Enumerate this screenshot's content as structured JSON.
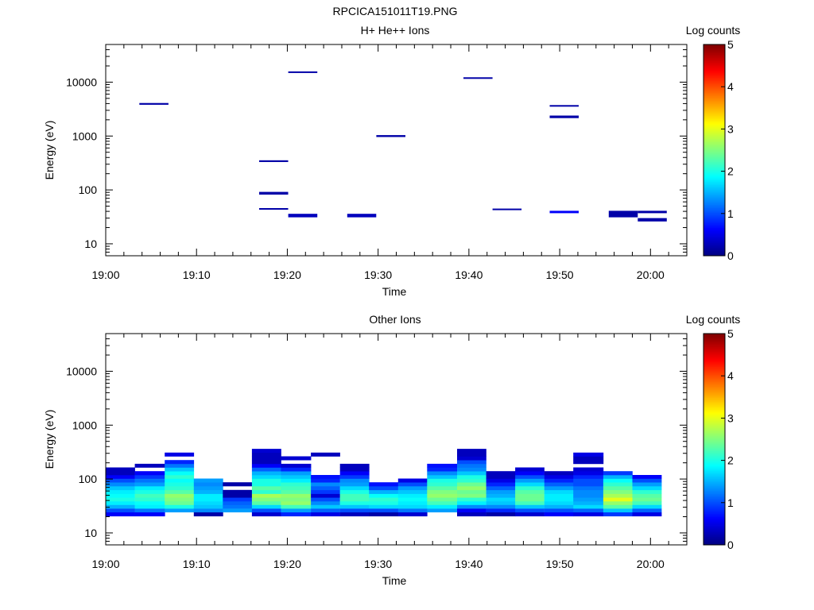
{
  "figure_title": "RPCICA151011T19.PNG",
  "colorbar": {
    "label": "Log counts",
    "ticks": [
      "0",
      "1",
      "2",
      "3",
      "4",
      "5"
    ],
    "range": [
      0,
      5
    ],
    "colormap": "jet"
  },
  "chart_data": [
    {
      "type": "heatmap",
      "title": "H+ He++ Ions",
      "xlabel": "Time",
      "ylabel": "Energy (eV)",
      "yscale": "log",
      "xlim": [
        "19:00",
        "20:04"
      ],
      "ylim": [
        6,
        50000
      ],
      "xticks": [
        "19:00",
        "19:10",
        "19:20",
        "19:30",
        "19:40",
        "19:50",
        "20:00"
      ],
      "yticks": [
        "10",
        "100",
        "1000",
        "10000"
      ],
      "cells": [
        {
          "t0": "19:03.7",
          "t1": "19:06.9",
          "e_lo": 3800,
          "e_hi": 4100,
          "v": 0.2
        },
        {
          "t0": "19:16.9",
          "t1": "19:20.1",
          "e_lo": 330,
          "e_hi": 355,
          "v": 0.2
        },
        {
          "t0": "19:16.9",
          "t1": "19:20.1",
          "e_lo": 82,
          "e_hi": 92,
          "v": 0.2
        },
        {
          "t0": "19:16.9",
          "t1": "19:20.1",
          "e_lo": 43,
          "e_hi": 46,
          "v": 0.2
        },
        {
          "t0": "19:20.1",
          "t1": "19:23.3",
          "e_lo": 14800,
          "e_hi": 15800,
          "v": 0.2
        },
        {
          "t0": "19:20.1",
          "t1": "19:23.3",
          "e_lo": 31,
          "e_hi": 36,
          "v": 0.3
        },
        {
          "t0": "19:26.6",
          "t1": "19:29.8",
          "e_lo": 31,
          "e_hi": 36,
          "v": 0.3
        },
        {
          "t0": "19:29.8",
          "t1": "19:33.0",
          "e_lo": 960,
          "e_hi": 1040,
          "v": 0.2
        },
        {
          "t0": "19:39.4",
          "t1": "19:42.6",
          "e_lo": 11600,
          "e_hi": 12300,
          "v": 0.2
        },
        {
          "t0": "19:42.6",
          "t1": "19:45.8",
          "e_lo": 42,
          "e_hi": 45,
          "v": 0.2
        },
        {
          "t0": "19:48.9",
          "t1": "19:52.1",
          "e_lo": 3550,
          "e_hi": 3750,
          "v": 0.2
        },
        {
          "t0": "19:48.9",
          "t1": "19:52.1",
          "e_lo": 2150,
          "e_hi": 2400,
          "v": 0.2
        },
        {
          "t0": "19:48.9",
          "t1": "19:52.1",
          "e_lo": 37,
          "e_hi": 41,
          "v": 0.6
        },
        {
          "t0": "19:55.4",
          "t1": "19:58.6",
          "e_lo": 31,
          "e_hi": 41,
          "v": 0.2
        },
        {
          "t0": "19:58.6",
          "t1": "20:01.8",
          "e_lo": 37,
          "e_hi": 41,
          "v": 0.2
        },
        {
          "t0": "19:58.6",
          "t1": "20:01.8",
          "e_lo": 26,
          "e_hi": 30,
          "v": 0.2
        }
      ]
    },
    {
      "type": "heatmap",
      "title": "Other Ions",
      "xlabel": "Time",
      "ylabel": "Energy (eV)",
      "yscale": "log",
      "xlim": [
        "19:00",
        "20:04"
      ],
      "ylim": [
        6,
        50000
      ],
      "xticks": [
        "19:00",
        "19:10",
        "19:20",
        "19:30",
        "19:40",
        "19:50",
        "20:00"
      ],
      "yticks": [
        "10",
        "100",
        "1000",
        "10000"
      ],
      "energy_bins": [
        20.5,
        24.3,
        28.5,
        33.3,
        38.8,
        45.5,
        53.5,
        62.9,
        74,
        87,
        102,
        119,
        140,
        164,
        192,
        225,
        264,
        310,
        363
      ],
      "columns": [
        {
          "t0": "19:00.0",
          "t1": "19:03.2",
          "values": [
            0.6,
            1.0,
            1.5,
            1.8,
            2.0,
            1.9,
            1.8,
            1.6,
            1.3,
            1.0,
            0.6,
            0.3,
            0.3,
            null,
            null,
            null,
            null,
            null
          ]
        },
        {
          "t0": "19:03.2",
          "t1": "19:06.5",
          "values": [
            0.6,
            1.2,
            1.8,
            1.9,
            2.1,
            2.2,
            2.0,
            1.8,
            1.4,
            1.2,
            0.9,
            0.6,
            null,
            0.3,
            null,
            null,
            null,
            null
          ]
        },
        {
          "t0": "19:06.5",
          "t1": "19:09.7",
          "values": [
            null,
            1.4,
            2.0,
            2.4,
            2.5,
            2.6,
            2.3,
            2.1,
            2.0,
            1.9,
            2.1,
            1.9,
            1.6,
            1.2,
            0.8,
            null,
            0.5,
            null
          ]
        },
        {
          "t0": "19:09.7",
          "t1": "19:12.9",
          "values": [
            0.2,
            1.3,
            1.6,
            1.7,
            1.8,
            1.8,
            1.5,
            1.4,
            1.3,
            1.4,
            null,
            null,
            null,
            null,
            null,
            null,
            null,
            null
          ]
        },
        {
          "t0": "19:12.9",
          "t1": "19:16.1",
          "values": [
            null,
            1.4,
            1.2,
            1.1,
            0.9,
            0.2,
            0.2,
            null,
            0.2,
            null,
            null,
            null,
            null,
            null,
            null,
            null,
            null,
            null
          ]
        },
        {
          "t0": "19:16.1",
          "t1": "19:19.3",
          "values": [
            0.4,
            1.0,
            1.7,
            2.3,
            2.5,
            2.7,
            2.1,
            2.3,
            2.0,
            2.0,
            1.7,
            1.5,
            1.1,
            0.6,
            0.3,
            0.3,
            0.3,
            0.4
          ]
        },
        {
          "t0": "19:19.3",
          "t1": "19:22.6",
          "values": [
            0.8,
            1.4,
            2.2,
            2.6,
            2.5,
            2.6,
            2.3,
            2.2,
            2.1,
            1.8,
            1.6,
            1.4,
            0.8,
            0.4,
            null,
            0.4,
            null,
            null
          ]
        },
        {
          "t0": "19:22.6",
          "t1": "19:25.8",
          "values": [
            0.5,
            1.1,
            1.6,
            1.3,
            1.0,
            0.4,
            0.9,
            1.1,
            1.3,
            0.8,
            0.7,
            null,
            null,
            null,
            null,
            null,
            0.3,
            null
          ]
        },
        {
          "t0": "19:25.8",
          "t1": "19:29.0",
          "values": [
            0.3,
            1.0,
            1.6,
            2.0,
            2.2,
            2.2,
            2.0,
            1.7,
            1.4,
            1.3,
            0.9,
            0.6,
            0.3,
            0.3,
            null,
            null,
            null,
            null
          ]
        },
        {
          "t0": "19:29.0",
          "t1": "19:32.2",
          "values": [
            0.2,
            1.0,
            1.7,
            2.0,
            2.1,
            1.9,
            1.5,
            1.0,
            0.7,
            null,
            null,
            null,
            null,
            null,
            null,
            null,
            null,
            null
          ]
        },
        {
          "t0": "19:32.2",
          "t1": "19:35.4",
          "values": [
            0.4,
            1.2,
            1.7,
            1.8,
            1.9,
            1.8,
            1.6,
            1.4,
            1.0,
            0.5,
            null,
            null,
            null,
            null,
            null,
            null,
            null,
            null
          ]
        },
        {
          "t0": "19:35.4",
          "t1": "19:38.7",
          "values": [
            null,
            1.4,
            1.8,
            2.2,
            2.4,
            2.6,
            2.5,
            2.3,
            2.1,
            2.0,
            1.6,
            1.3,
            0.8,
            0.7,
            null,
            null,
            null,
            null
          ]
        },
        {
          "t0": "19:38.7",
          "t1": "19:41.9",
          "values": [
            0.3,
            0.6,
            1.3,
            1.8,
            2.1,
            2.5,
            2.4,
            2.6,
            2.4,
            2.1,
            2.0,
            1.6,
            1.3,
            1.2,
            1.0,
            0.4,
            0.3,
            0.3
          ]
        },
        {
          "t0": "19:41.9",
          "t1": "19:45.1",
          "values": [
            0.2,
            0.8,
            1.3,
            1.6,
            1.7,
            1.5,
            1.4,
            1.1,
            0.8,
            0.5,
            0.3,
            0.3,
            null,
            null,
            null,
            null,
            null,
            null
          ]
        },
        {
          "t0": "19:45.1",
          "t1": "19:48.3",
          "values": [
            0.4,
            1.0,
            1.6,
            2.2,
            2.4,
            2.4,
            2.3,
            2.1,
            1.7,
            1.4,
            1.0,
            0.6,
            0.4,
            null,
            null,
            null,
            null,
            null
          ]
        },
        {
          "t0": "19:48.3",
          "t1": "19:51.5",
          "values": [
            0.6,
            1.0,
            1.5,
            1.7,
            1.8,
            1.8,
            1.7,
            1.4,
            1.1,
            0.8,
            0.5,
            0.3,
            null,
            null,
            null,
            null,
            null,
            null
          ]
        },
        {
          "t0": "19:51.5",
          "t1": "19:54.8",
          "values": [
            0.5,
            1.1,
            1.7,
            1.5,
            1.4,
            1.3,
            1.3,
            1.2,
            1.0,
            1.0,
            0.8,
            0.5,
            0.4,
            null,
            0.3,
            0.3,
            0.5,
            null
          ]
        },
        {
          "t0": "19:54.8",
          "t1": "19:58.0",
          "values": [
            0.9,
            1.6,
            2.3,
            2.6,
            3.0,
            2.7,
            2.5,
            2.3,
            2.1,
            1.9,
            1.5,
            0.9,
            null,
            null,
            null,
            null,
            null,
            null
          ]
        },
        {
          "t0": "19:58.0",
          "t1": "20:01.2",
          "values": [
            0.5,
            1.1,
            1.7,
            2.2,
            2.4,
            2.3,
            2.1,
            1.7,
            1.4,
            1.0,
            0.6,
            null,
            null,
            null,
            null,
            null,
            null,
            null
          ]
        }
      ]
    }
  ]
}
